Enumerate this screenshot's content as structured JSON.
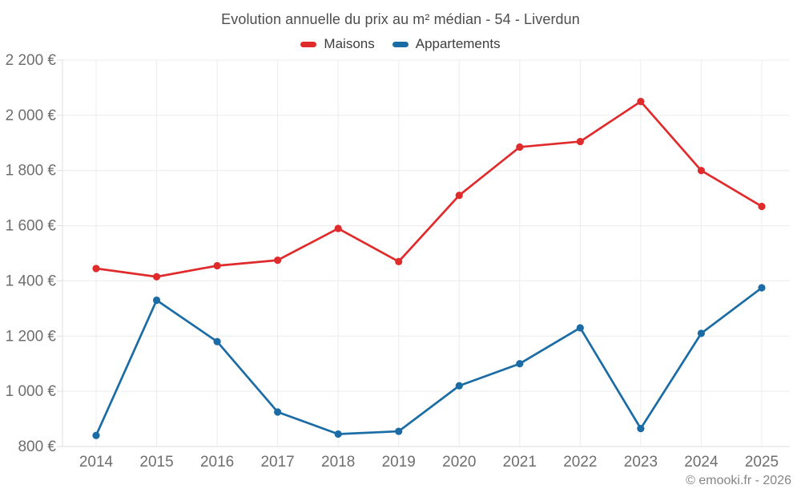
{
  "page": {
    "footer": "© emooki.fr - 2026"
  },
  "chart_data": {
    "type": "line",
    "title": "Evolution annuelle du prix au m² médian - 54 - Liverdun",
    "categories": [
      "2014",
      "2015",
      "2016",
      "2017",
      "2018",
      "2019",
      "2020",
      "2021",
      "2022",
      "2023",
      "2024",
      "2025"
    ],
    "series": [
      {
        "name": "Maisons",
        "color": "#e02b2d",
        "values": [
          1445,
          1415,
          1455,
          1475,
          1590,
          1470,
          1710,
          1885,
          1905,
          2050,
          1800,
          1670
        ]
      },
      {
        "name": "Appartements",
        "color": "#1b6ca5",
        "values": [
          840,
          1330,
          1180,
          925,
          845,
          855,
          1020,
          1100,
          1230,
          865,
          1210,
          1375
        ]
      }
    ],
    "xlabel": "",
    "ylabel": "",
    "ylim": [
      800,
      2200
    ],
    "y_ticks": [
      800,
      1000,
      1200,
      1400,
      1600,
      1800,
      2000,
      2200
    ],
    "y_tick_labels": [
      "800 €",
      "1 000 €",
      "1 200 €",
      "1 400 €",
      "1 600 €",
      "1 800 €",
      "2 000 €",
      "2 200 €"
    ],
    "grid": true,
    "legend_position": "top",
    "style": {
      "grid_color": "#ececec",
      "axis_color": "#dedede",
      "tick_label_color": "#6e6e6e",
      "title_color": "#4d4d4d",
      "legend_text_color": "#3d3d3d",
      "footer_color": "#858585",
      "background": "#ffffff"
    }
  }
}
